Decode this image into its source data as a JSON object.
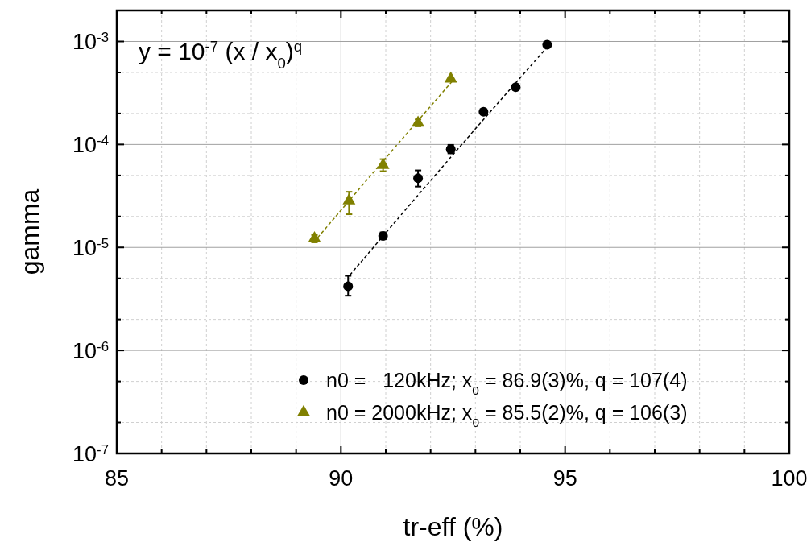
{
  "chart_data": {
    "type": "scatter",
    "xlabel": "tr-eff (%)",
    "ylabel": "gamma",
    "log": "y",
    "grid": true,
    "legend": "bottom right",
    "xlim": [
      85,
      100
    ],
    "ylim": [
      1e-07,
      0.002
    ],
    "xticks": [
      85,
      {
        "value": 86,
        "label": null
      },
      {
        "value": 87,
        "label": null
      },
      {
        "value": 88,
        "label": null
      },
      {
        "value": 89,
        "label": null
      },
      90,
      {
        "value": 91,
        "label": null
      },
      {
        "value": 92,
        "label": null
      },
      {
        "value": 93,
        "label": null
      },
      {
        "value": 94,
        "label": null
      },
      95,
      {
        "value": 96,
        "label": null
      },
      {
        "value": 97,
        "label": null
      },
      {
        "value": 98,
        "label": null
      },
      {
        "value": 99,
        "label": null
      },
      100
    ],
    "yticks": [
      {
        "value": 1e-07,
        "label": "10$^{-7}$"
      },
      {
        "value": 2e-07,
        "label": null
      },
      {
        "value": 5e-07,
        "label": null
      },
      {
        "value": 1e-06,
        "label": "10$^{-6}$"
      },
      {
        "value": 2e-06,
        "label": null
      },
      {
        "value": 5e-06,
        "label": null
      },
      {
        "value": 1e-05,
        "label": "10$^{-5}$"
      },
      {
        "value": 2e-05,
        "label": null
      },
      {
        "value": 5e-05,
        "label": null
      },
      {
        "value": 0.0001,
        "label": "10$^{-4}$"
      },
      {
        "value": 0.0002,
        "label": null
      },
      {
        "value": 0.0005,
        "label": null
      },
      {
        "value": 0.001,
        "label": "10$^{-3}$"
      }
    ],
    "annotations": [
      "y = 10$^{-7}$ (x / x$_{0}$)$^{q}$"
    ],
    "series": [
      {
        "name": "n0 =   120kHz; x$_{0}$ = 86.9(3)%, q = 107(4)",
        "marker": "circle",
        "color": "#000000",
        "x": [
          90.16,
          90.94,
          91.72,
          92.45,
          93.18,
          93.9,
          94.6
        ],
        "values": [
          4.2e-06,
          1.29e-05,
          4.7e-05,
          9e-05,
          0.000208,
          0.00036,
          0.00093
        ],
        "errors": [
          [
            3.4e-06,
            5.3e-06
          ],
          [
            1.2e-05,
            1.4e-05
          ],
          [
            3.9e-05,
            5.6e-05
          ],
          [
            8.2e-05,
            9.9e-05
          ],
          null,
          null,
          null
        ]
      },
      {
        "name": "n0 = 2000kHz; x$_{0}$ = 85.5(2)%, q = 106(3)",
        "marker": "triangle",
        "color": "#808000",
        "x": [
          89.41,
          90.18,
          90.94,
          91.72,
          92.45
        ],
        "values": [
          1.22e-05,
          2.85e-05,
          6.3e-05,
          0.000162,
          0.000433
        ],
        "errors": [
          [
            1.12e-05,
            1.32e-05
          ],
          [
            2.1e-05,
            3.47e-05
          ],
          [
            5.5e-05,
            7.2e-05
          ],
          [
            0.00015,
            0.000175
          ],
          null
        ]
      },
      {
        "type": "line",
        "line_style": "dashed",
        "marker": "none",
        "color": "#000000",
        "x": [
          90.2,
          92.4,
          94.6
        ],
        "values": [
          5.4e-06,
          7.1e-05,
          0.00088
        ]
      },
      {
        "type": "line",
        "line_style": "dashed",
        "marker": "none",
        "color": "#808000",
        "x": [
          89.4,
          91,
          92.5
        ],
        "values": [
          1.13e-05,
          7.4e-05,
          0.000419
        ]
      }
    ]
  }
}
